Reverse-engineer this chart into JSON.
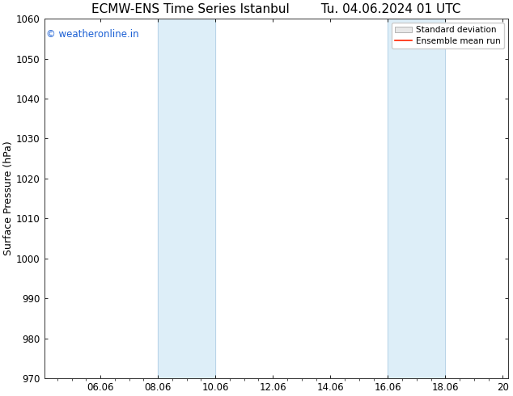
{
  "title_left": "ECMW-ENS Time Series Istanbul",
  "title_right": "Tu. 04.06.2024 01 UTC",
  "ylabel": "Surface Pressure (hPa)",
  "ylim": [
    970,
    1060
  ],
  "yticks": [
    970,
    980,
    990,
    1000,
    1010,
    1020,
    1030,
    1040,
    1050,
    1060
  ],
  "xlim_start": 4.04,
  "xlim_end": 20.2,
  "xtick_labels": [
    "06.06",
    "08.06",
    "10.06",
    "12.06",
    "14.06",
    "16.06",
    "18.06",
    "20"
  ],
  "xtick_positions": [
    6.0,
    8.0,
    10.0,
    12.0,
    14.0,
    16.0,
    18.0,
    20.0
  ],
  "shaded_bands": [
    {
      "x_start": 8.0,
      "x_end": 10.0
    },
    {
      "x_start": 16.0,
      "x_end": 18.0
    }
  ],
  "shade_color": "#ddeef8",
  "background_color": "#ffffff",
  "watermark_text": "© weatheronline.in",
  "watermark_color": "#1a5fd4",
  "legend_std_label": "Standard deviation",
  "legend_mean_label": "Ensemble mean run",
  "legend_mean_color": "#ff2200",
  "legend_std_facecolor": "#e8e8e8",
  "legend_std_edgecolor": "#aaaaaa",
  "title_fontsize": 11,
  "ylabel_fontsize": 9,
  "tick_fontsize": 8.5,
  "watermark_fontsize": 8.5
}
